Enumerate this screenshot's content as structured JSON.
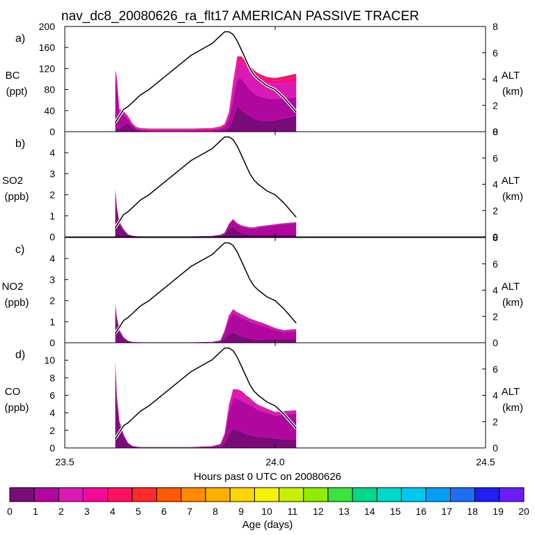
{
  "title": "nav_dc8_20080626_ra_flt17 AMERICAN PASSIVE TRACER",
  "xlabel": "Hours past 0 UTC on 20080626",
  "x_ticks": [
    "23.5",
    "24.0",
    "24.5"
  ],
  "colorbar": {
    "label": "Age (days)",
    "ticks": [
      "0",
      "1",
      "2",
      "3",
      "4",
      "5",
      "6",
      "7",
      "8",
      "9",
      "10",
      "11",
      "12",
      "13",
      "14",
      "15",
      "16",
      "17",
      "18",
      "19",
      "20"
    ],
    "colors": [
      "#7a0c7a",
      "#b0089f",
      "#d91ab5",
      "#f20b96",
      "#ff1060",
      "#ff2a2a",
      "#ff5a00",
      "#ff8c00",
      "#ffb000",
      "#ffd500",
      "#f5f200",
      "#c8f000",
      "#90ec00",
      "#3ee23e",
      "#00d88c",
      "#00d8c8",
      "#00c8f0",
      "#00a0f5",
      "#1e6ef5",
      "#1e1ef5",
      "#6a1ef5"
    ]
  },
  "chart_data": [
    {
      "type": "area",
      "panel": "a)",
      "ylabel": [
        "BC",
        "(ppt)"
      ],
      "y2label": [
        "ALT",
        "(km)"
      ],
      "xlim": [
        23.5,
        24.5
      ],
      "ylim": [
        0,
        200
      ],
      "y_ticks": [
        "0",
        "40",
        "80",
        "120",
        "160",
        "200"
      ],
      "y2lim": [
        0,
        8
      ],
      "y2_ticks": [
        "0",
        "2",
        "4",
        "6",
        "8"
      ],
      "x": [
        23.62,
        23.624,
        23.63,
        23.64,
        23.65,
        23.66,
        23.67,
        23.68,
        23.7,
        23.75,
        23.8,
        23.85,
        23.87,
        23.88,
        23.89,
        23.9,
        23.91,
        23.92,
        23.93,
        23.94,
        23.95,
        23.96,
        23.98,
        24.0,
        24.02,
        24.05
      ],
      "series": [
        {
          "name": "0-1 days",
          "values": [
            2,
            8,
            5,
            12,
            16,
            9,
            4,
            2,
            1,
            1,
            1,
            1,
            2,
            3,
            8,
            25,
            50,
            40,
            35,
            30,
            25,
            22,
            20,
            22,
            25,
            30
          ]
        },
        {
          "name": "1-2 days",
          "values": [
            100,
            80,
            30,
            20,
            8,
            4,
            2,
            2,
            2,
            2,
            2,
            3,
            4,
            6,
            15,
            35,
            50,
            60,
            55,
            50,
            48,
            46,
            43,
            40,
            38,
            36
          ]
        },
        {
          "name": "2-3 days",
          "values": [
            10,
            10,
            5,
            4,
            3,
            2,
            1,
            1,
            1,
            1,
            1,
            1,
            2,
            3,
            8,
            25,
            32,
            32,
            33,
            34,
            33,
            32,
            30,
            28,
            28,
            28
          ]
        },
        {
          "name": "3-4 days",
          "values": [
            4,
            3,
            2,
            2,
            2,
            1,
            1,
            1,
            1,
            1,
            1,
            1,
            1,
            2,
            4,
            6,
            6,
            6,
            6,
            6,
            6,
            6,
            6,
            7,
            8,
            9
          ]
        },
        {
          "name": "4-5 days",
          "values": [
            2,
            2,
            1,
            1,
            1,
            1,
            1,
            1,
            1,
            1,
            1,
            1,
            1,
            1,
            2,
            4,
            5,
            5,
            5,
            5,
            5,
            5,
            5,
            5,
            6,
            7
          ]
        }
      ],
      "altitude_km": [
        0.7,
        0.9,
        1.2,
        1.7,
        1.9,
        2.2,
        2.5,
        2.8,
        3.2,
        4.5,
        5.8,
        6.7,
        7.3,
        7.6,
        7.6,
        7.4,
        6.9,
        6.2,
        5.5,
        4.8,
        4.3,
        4.0,
        3.5,
        3.2,
        2.6,
        1.5
      ]
    },
    {
      "type": "area",
      "panel": "b)",
      "ylabel": [
        "SO2",
        "(ppb)"
      ],
      "y2label": [
        "ALT",
        "(km)"
      ],
      "xlim": [
        23.5,
        24.5
      ],
      "ylim": [
        0,
        5
      ],
      "y_ticks": [
        "0",
        "1",
        "2",
        "3",
        "4"
      ],
      "y2lim": [
        0,
        8
      ],
      "y2_ticks": [
        "0",
        "2",
        "4",
        "6",
        "8"
      ],
      "x": [
        23.62,
        23.624,
        23.63,
        23.64,
        23.65,
        23.66,
        23.67,
        23.68,
        23.7,
        23.75,
        23.8,
        23.85,
        23.87,
        23.88,
        23.89,
        23.9,
        23.91,
        23.92,
        23.93,
        23.94,
        23.95,
        23.96,
        23.98,
        24.0,
        24.02,
        24.05
      ],
      "series": [
        {
          "name": "0-1 days",
          "values": [
            2.2,
            1.2,
            0.6,
            0.3,
            0.1,
            0.05,
            0.02,
            0.01,
            0.01,
            0.01,
            0.01,
            0.02,
            0.05,
            0.1,
            0.4,
            0.5,
            0.3,
            0.2,
            0.15,
            0.1,
            0.1,
            0.1,
            0.1,
            0.1,
            0.1,
            0.1
          ]
        },
        {
          "name": "1-2 days",
          "values": [
            0.1,
            0.2,
            0.1,
            0.05,
            0.02,
            0.01,
            0.01,
            0.01,
            0.01,
            0.01,
            0.01,
            0.02,
            0.05,
            0.1,
            0.2,
            0.3,
            0.3,
            0.3,
            0.3,
            0.3,
            0.3,
            0.35,
            0.4,
            0.45,
            0.5,
            0.55
          ]
        },
        {
          "name": "2-3 days",
          "values": [
            0,
            0,
            0,
            0,
            0,
            0,
            0,
            0,
            0,
            0,
            0,
            0,
            0,
            0,
            0.02,
            0.05,
            0.05,
            0.05,
            0.05,
            0.05,
            0.05,
            0.05,
            0.05,
            0.05,
            0.05,
            0.05
          ]
        }
      ],
      "altitude_km": [
        0.7,
        0.9,
        1.2,
        1.7,
        1.9,
        2.2,
        2.5,
        2.8,
        3.2,
        4.5,
        5.8,
        6.7,
        7.3,
        7.6,
        7.6,
        7.4,
        6.9,
        6.2,
        5.5,
        4.8,
        4.3,
        4.0,
        3.5,
        3.2,
        2.6,
        1.5
      ]
    },
    {
      "type": "area",
      "panel": "c)",
      "ylabel": [
        "NO2",
        "(ppb)"
      ],
      "y2label": [
        "ALT",
        "(km)"
      ],
      "xlim": [
        23.5,
        24.5
      ],
      "ylim": [
        0,
        5
      ],
      "y_ticks": [
        "0",
        "1",
        "2",
        "3",
        "4"
      ],
      "y2lim": [
        0,
        8
      ],
      "y2_ticks": [
        "0",
        "2",
        "4",
        "6",
        "8"
      ],
      "x": [
        23.62,
        23.624,
        23.63,
        23.64,
        23.65,
        23.66,
        23.67,
        23.68,
        23.7,
        23.75,
        23.8,
        23.85,
        23.87,
        23.88,
        23.89,
        23.9,
        23.91,
        23.92,
        23.93,
        23.94,
        23.95,
        23.96,
        23.98,
        24.0,
        24.02,
        24.05
      ],
      "series": [
        {
          "name": "0-1 days",
          "values": [
            1.6,
            1.0,
            0.5,
            0.2,
            0.08,
            0.03,
            0.02,
            0.01,
            0.01,
            0.01,
            0.01,
            0.02,
            0.05,
            0.2,
            0.4,
            0.5,
            0.4,
            0.3,
            0.25,
            0.2,
            0.18,
            0.16,
            0.15,
            0.15,
            0.15,
            0.15
          ]
        },
        {
          "name": "1-2 days",
          "values": [
            0.2,
            0.2,
            0.1,
            0.05,
            0.02,
            0.01,
            0.01,
            0.01,
            0.01,
            0.01,
            0.01,
            0.02,
            0.05,
            0.3,
            0.7,
            0.9,
            0.9,
            0.9,
            0.85,
            0.8,
            0.75,
            0.7,
            0.6,
            0.45,
            0.35,
            0.4
          ]
        },
        {
          "name": "2-3 days",
          "values": [
            0.02,
            0.02,
            0.01,
            0,
            0,
            0,
            0,
            0,
            0,
            0,
            0,
            0,
            0.02,
            0.1,
            0.2,
            0.2,
            0.15,
            0.15,
            0.15,
            0.15,
            0.15,
            0.15,
            0.12,
            0.1,
            0.1,
            0.1
          ]
        }
      ],
      "altitude_km": [
        0.7,
        0.9,
        1.2,
        1.7,
        1.9,
        2.2,
        2.5,
        2.8,
        3.2,
        4.5,
        5.8,
        6.7,
        7.3,
        7.6,
        7.6,
        7.4,
        6.9,
        6.2,
        5.5,
        4.8,
        4.3,
        4.0,
        3.5,
        3.2,
        2.6,
        1.5
      ]
    },
    {
      "type": "area",
      "panel": "d)",
      "ylabel": [
        "CO",
        "(ppb)"
      ],
      "y2label": [
        "ALT",
        "(km)"
      ],
      "xlim": [
        23.5,
        24.5
      ],
      "ylim": [
        0,
        12
      ],
      "y_ticks": [
        "0",
        "2",
        "4",
        "6",
        "8",
        "10"
      ],
      "y2lim": [
        0,
        8
      ],
      "y2_ticks": [
        "0",
        "2",
        "4",
        "6"
      ],
      "x": [
        23.62,
        23.624,
        23.63,
        23.64,
        23.65,
        23.66,
        23.67,
        23.68,
        23.7,
        23.75,
        23.8,
        23.85,
        23.87,
        23.88,
        23.89,
        23.9,
        23.91,
        23.92,
        23.93,
        23.94,
        23.95,
        23.96,
        23.98,
        24.0,
        24.02,
        24.05
      ],
      "series": [
        {
          "name": "0-1 days",
          "values": [
            9.0,
            5.0,
            2.5,
            1.2,
            0.5,
            0.2,
            0.1,
            0.05,
            0.05,
            0.05,
            0.05,
            0.1,
            0.2,
            0.6,
            1.6,
            2.2,
            2.0,
            1.8,
            1.6,
            1.5,
            1.4,
            1.3,
            1.2,
            1.1,
            1.0,
            1.0
          ]
        },
        {
          "name": "1-2 days",
          "values": [
            0.8,
            0.8,
            0.5,
            0.3,
            0.1,
            0.05,
            0.05,
            0.05,
            0.05,
            0.05,
            0.05,
            0.1,
            0.2,
            0.8,
            2.5,
            3.4,
            3.6,
            3.6,
            3.5,
            3.4,
            3.2,
            3.0,
            2.8,
            2.6,
            2.8,
            2.9
          ]
        },
        {
          "name": "2-3 days",
          "values": [
            0.1,
            0.1,
            0.05,
            0.05,
            0,
            0,
            0,
            0,
            0,
            0,
            0,
            0,
            0.05,
            0.2,
            0.6,
            0.8,
            0.8,
            0.8,
            0.7,
            0.6,
            0.5,
            0.45,
            0.4,
            0.3,
            0.3,
            0.3
          ]
        },
        {
          "name": "3-4 days",
          "values": [
            0,
            0,
            0,
            0,
            0,
            0,
            0,
            0,
            0,
            0,
            0,
            0,
            0.02,
            0.1,
            0.2,
            0.3,
            0.3,
            0.3,
            0.25,
            0.2,
            0.15,
            0.15,
            0.1,
            0.1,
            0.1,
            0.1
          ]
        }
      ],
      "altitude_km": [
        0.7,
        0.9,
        1.2,
        1.7,
        1.9,
        2.2,
        2.5,
        2.8,
        3.2,
        4.5,
        5.8,
        6.7,
        7.3,
        7.6,
        7.6,
        7.4,
        6.9,
        6.2,
        5.5,
        4.8,
        4.3,
        4.0,
        3.5,
        3.2,
        2.6,
        1.5
      ]
    }
  ]
}
